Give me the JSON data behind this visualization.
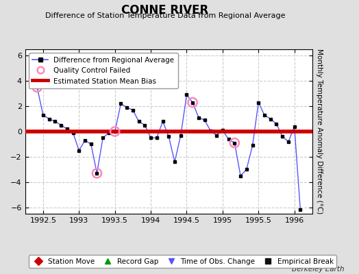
{
  "title": "CONNE RIVER",
  "subtitle": "Difference of Station Temperature Data from Regional Average",
  "ylabel": "Monthly Temperature Anomaly Difference (°C)",
  "xlim": [
    1992.25,
    1996.25
  ],
  "ylim": [
    -6.5,
    6.5
  ],
  "yticks": [
    -6,
    -4,
    -2,
    0,
    2,
    4,
    6
  ],
  "xticks": [
    1992.5,
    1993.0,
    1993.5,
    1994.0,
    1994.5,
    1995.0,
    1995.5,
    1996.0
  ],
  "xtick_labels": [
    "1992.5",
    "1993",
    "1993.5",
    "1994",
    "1994.5",
    "1995",
    "1995.5",
    "1996"
  ],
  "bias_level": 0.0,
  "background_color": "#e0e0e0",
  "plot_bg_color": "#ffffff",
  "line_color": "#5555ff",
  "bias_color": "#cc0000",
  "marker_color": "#000000",
  "qc_fail_color": "#ff88bb",
  "x_data": [
    1992.417,
    1992.5,
    1992.583,
    1992.667,
    1992.75,
    1992.833,
    1992.917,
    1993.0,
    1993.083,
    1993.167,
    1993.25,
    1993.333,
    1993.417,
    1993.5,
    1993.583,
    1993.667,
    1993.75,
    1993.833,
    1993.917,
    1994.0,
    1994.083,
    1994.167,
    1994.25,
    1994.333,
    1994.417,
    1994.5,
    1994.583,
    1994.667,
    1994.75,
    1994.833,
    1994.917,
    1995.0,
    1995.083,
    1995.167,
    1995.25,
    1995.333,
    1995.417,
    1995.5,
    1995.583,
    1995.667,
    1995.75,
    1995.833,
    1995.917,
    1996.0,
    1996.083
  ],
  "y_data": [
    3.5,
    1.3,
    1.0,
    0.8,
    0.5,
    0.2,
    -0.1,
    -1.5,
    -0.7,
    -1.0,
    -3.3,
    -0.5,
    -0.1,
    0.0,
    2.2,
    1.9,
    1.7,
    0.8,
    0.5,
    -0.5,
    -0.5,
    0.8,
    -0.4,
    -2.4,
    -0.3,
    2.9,
    2.3,
    1.1,
    0.9,
    0.05,
    -0.3,
    0.1,
    -0.6,
    -0.9,
    -3.5,
    -3.0,
    -1.1,
    2.3,
    1.3,
    1.0,
    0.6,
    -0.4,
    -0.8,
    0.4,
    -6.2
  ],
  "qc_fail_x": [
    1992.417,
    1993.25,
    1993.5,
    1994.583,
    1995.167
  ],
  "qc_fail_y": [
    3.5,
    -3.3,
    0.0,
    2.3,
    -0.9
  ],
  "footer_legend": [
    {
      "label": "Station Move",
      "color": "#cc0000",
      "marker": "D"
    },
    {
      "label": "Record Gap",
      "color": "#009900",
      "marker": "^"
    },
    {
      "label": "Time of Obs. Change",
      "color": "#5555ff",
      "marker": "v"
    },
    {
      "label": "Empirical Break",
      "color": "#111111",
      "marker": "s"
    }
  ],
  "berkeley_earth_text": "Berkeley Earth",
  "grid_color": "#cccccc",
  "grid_style": "--"
}
